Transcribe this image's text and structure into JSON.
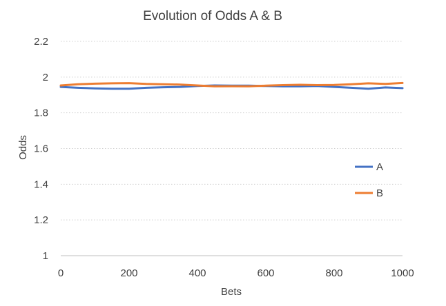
{
  "chart_data": {
    "type": "line",
    "title": "Evolution of Odds A & B",
    "xlabel": "Bets",
    "ylabel": "Odds",
    "xlim": [
      0,
      1000
    ],
    "ylim": [
      1,
      2.2
    ],
    "x_ticks": [
      0,
      200,
      400,
      600,
      800,
      1000
    ],
    "y_ticks": [
      1,
      1.2,
      1.4,
      1.6,
      1.8,
      2,
      2.2
    ],
    "y_tick_labels": [
      "1",
      "1.2",
      "1.4",
      "1.6",
      "1.8",
      "2",
      "2.2"
    ],
    "grid": "horizontal",
    "legend": "right",
    "series": [
      {
        "name": "A",
        "color": "#4472C4",
        "x": [
          0,
          50,
          100,
          150,
          200,
          250,
          300,
          350,
          400,
          450,
          500,
          550,
          600,
          650,
          700,
          750,
          800,
          850,
          900,
          950,
          1000
        ],
        "values": [
          1.945,
          1.94,
          1.937,
          1.935,
          1.935,
          1.94,
          1.943,
          1.945,
          1.95,
          1.953,
          1.952,
          1.952,
          1.95,
          1.948,
          1.948,
          1.95,
          1.945,
          1.94,
          1.935,
          1.942,
          1.938
        ]
      },
      {
        "name": "B",
        "color": "#ED7D31",
        "x": [
          0,
          50,
          100,
          150,
          200,
          250,
          300,
          350,
          400,
          450,
          500,
          550,
          600,
          650,
          700,
          750,
          800,
          850,
          900,
          950,
          1000
        ],
        "values": [
          1.953,
          1.96,
          1.963,
          1.965,
          1.966,
          1.962,
          1.96,
          1.958,
          1.953,
          1.948,
          1.949,
          1.948,
          1.952,
          1.955,
          1.957,
          1.955,
          1.956,
          1.96,
          1.965,
          1.962,
          1.967
        ]
      }
    ]
  }
}
